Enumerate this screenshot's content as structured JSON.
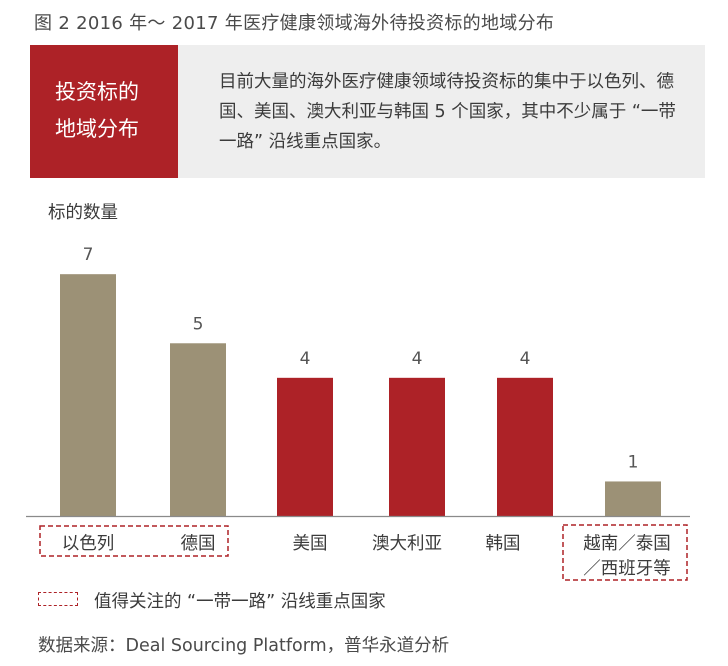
{
  "figure_title": "图 2  2016 年～ 2017 年医疗健康领域海外待投资标的地域分布",
  "banner": {
    "label_line1": "投资标的",
    "label_line2": "地域分布",
    "text": "目前大量的海外医疗健康领域待投资标的集中于以色列、德国、美国、澳大利亚与韩国 5 个国家，其中不少属于 “一带一路” 沿线重点国家。",
    "label_bg_color": "#ad2227",
    "bg_color": "#eeeeee"
  },
  "legend": {
    "text": "值得关注的 “一带一路” 沿线重点国家",
    "dash_color": "#ad2227"
  },
  "source": "数据来源：Deal Sourcing Platform，普华永道分析",
  "chart_data": {
    "type": "bar",
    "ylabel": "标的数量",
    "categories": [
      "以色列",
      "德国",
      "美国",
      "澳大利亚",
      "韩国",
      "越南／泰国／西班牙等"
    ],
    "category_lines": [
      [
        "以色列"
      ],
      [
        "德国"
      ],
      [
        "美国"
      ],
      [
        "澳大利亚"
      ],
      [
        "韩国"
      ],
      [
        "越南／泰国",
        "／西班牙等"
      ]
    ],
    "values": [
      7,
      5,
      4,
      4,
      4,
      1
    ],
    "value_labels": [
      "7",
      "5",
      "4",
      "4",
      "4",
      "1"
    ],
    "colors": [
      "#9c9176",
      "#9c9176",
      "#ad2227",
      "#ad2227",
      "#ad2227",
      "#9c9176"
    ],
    "highlighted_groups": [
      [
        0,
        1
      ],
      [
        5,
        5
      ]
    ],
    "ylim": [
      0,
      7.7
    ],
    "grid": false,
    "legend_position": "bottom-left"
  }
}
